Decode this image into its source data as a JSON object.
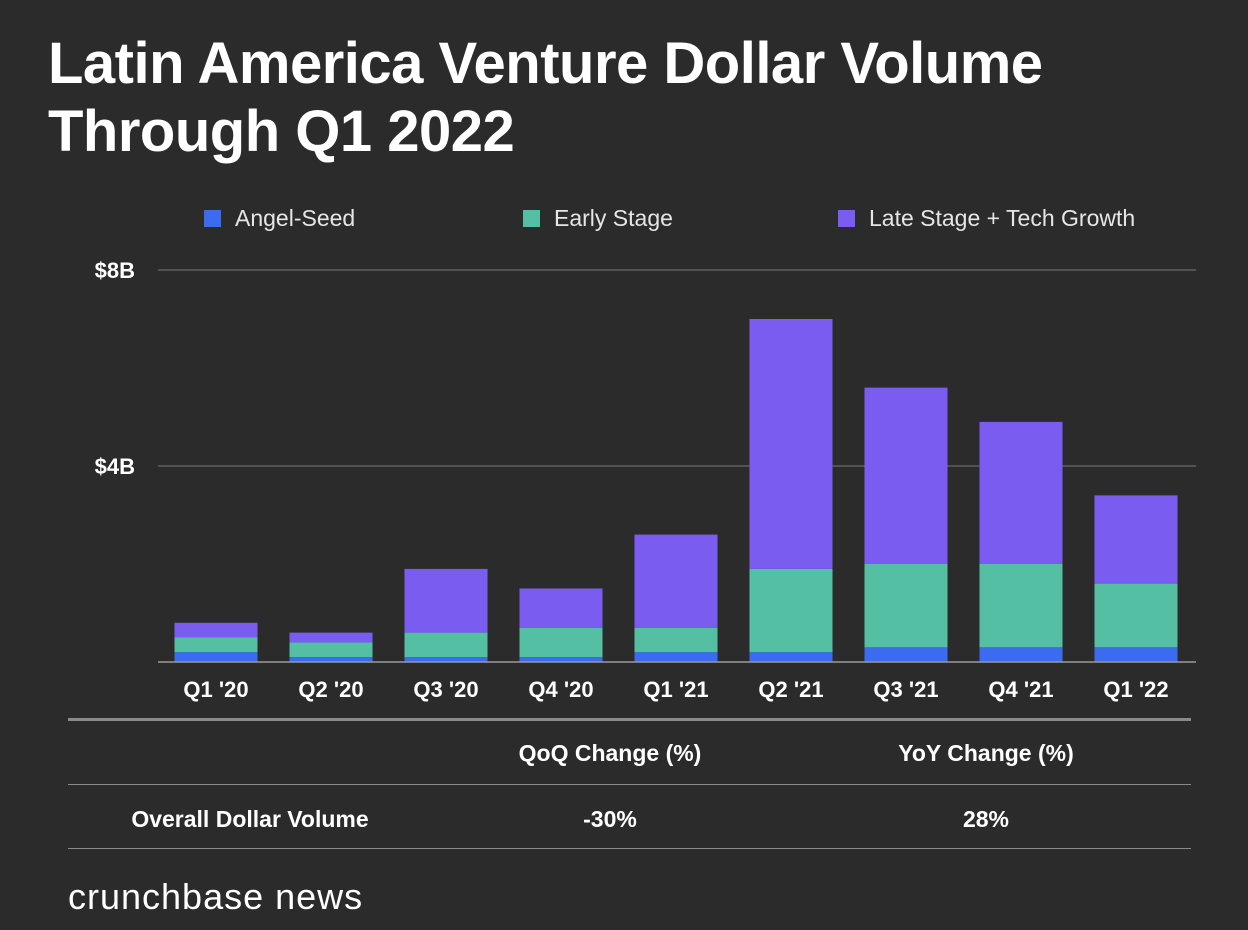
{
  "title": "Latin America Venture Dollar Volume Through Q1 2022",
  "chart_data": {
    "type": "bar",
    "stacked": true,
    "categories": [
      "Q1 '20",
      "Q2 '20",
      "Q3 '20",
      "Q4 '20",
      "Q1 '21",
      "Q2 '21",
      "Q3 '21",
      "Q4 '21",
      "Q1 '22"
    ],
    "series": [
      {
        "name": "Angel-Seed",
        "color": "#3b6cf0",
        "values": [
          0.2,
          0.1,
          0.1,
          0.1,
          0.2,
          0.2,
          0.3,
          0.3,
          0.3
        ]
      },
      {
        "name": "Early Stage",
        "color": "#55bfa4",
        "values": [
          0.3,
          0.3,
          0.5,
          0.6,
          0.5,
          1.7,
          1.7,
          1.7,
          1.3
        ]
      },
      {
        "name": "Late Stage + Tech Growth",
        "color": "#7b5cf0",
        "values": [
          0.3,
          0.2,
          1.3,
          0.8,
          1.9,
          5.1,
          3.6,
          2.9,
          1.8
        ]
      }
    ],
    "ylim": [
      0,
      8
    ],
    "yticks": [
      {
        "value": 4,
        "label": "$4B"
      },
      {
        "value": 8,
        "label": "$8B"
      }
    ],
    "grid": true,
    "legend_position": "top"
  },
  "table": {
    "headers": [
      "",
      "QoQ Change (%)",
      "YoY Change (%)"
    ],
    "rows": [
      {
        "label": "Overall Dollar Volume",
        "qoq": "-30%",
        "yoy": "28%"
      }
    ]
  },
  "brand": "crunchbase news"
}
